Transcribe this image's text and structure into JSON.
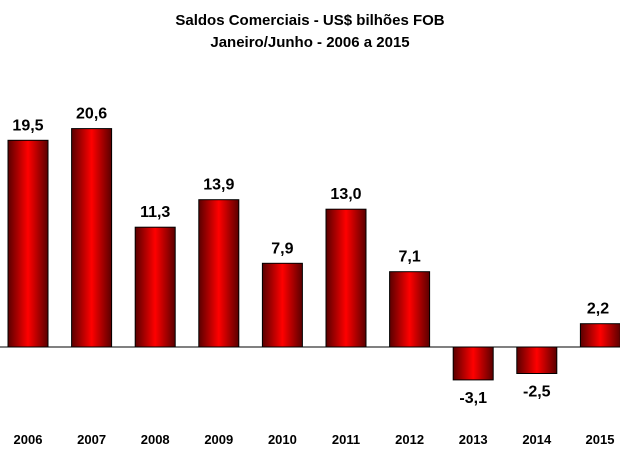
{
  "chart_data": {
    "type": "bar",
    "title": "Saldos Comerciais - US$ bilhões FOB",
    "subtitle": "Janeiro/Junho - 2006 a 2015",
    "categories": [
      "2006",
      "2007",
      "2008",
      "2009",
      "2010",
      "2011",
      "2012",
      "2013",
      "2014",
      "2015"
    ],
    "values": [
      19.5,
      20.6,
      11.3,
      13.9,
      7.9,
      13.0,
      7.1,
      -3.1,
      -2.5,
      2.2
    ],
    "data_labels": [
      "19,5",
      "20,6",
      "11,3",
      "13,9",
      "7,9",
      "13,0",
      "7,1",
      "-3,1",
      "-2,5",
      "2,2"
    ],
    "xlabel": "",
    "ylabel": "",
    "ylim": [
      -4,
      22
    ],
    "grid": false,
    "legend": "none",
    "colors": {
      "bar_center": "#ff0000",
      "bar_edge": "#5a0000",
      "outline": "#000000",
      "background": "#ffffff"
    }
  }
}
